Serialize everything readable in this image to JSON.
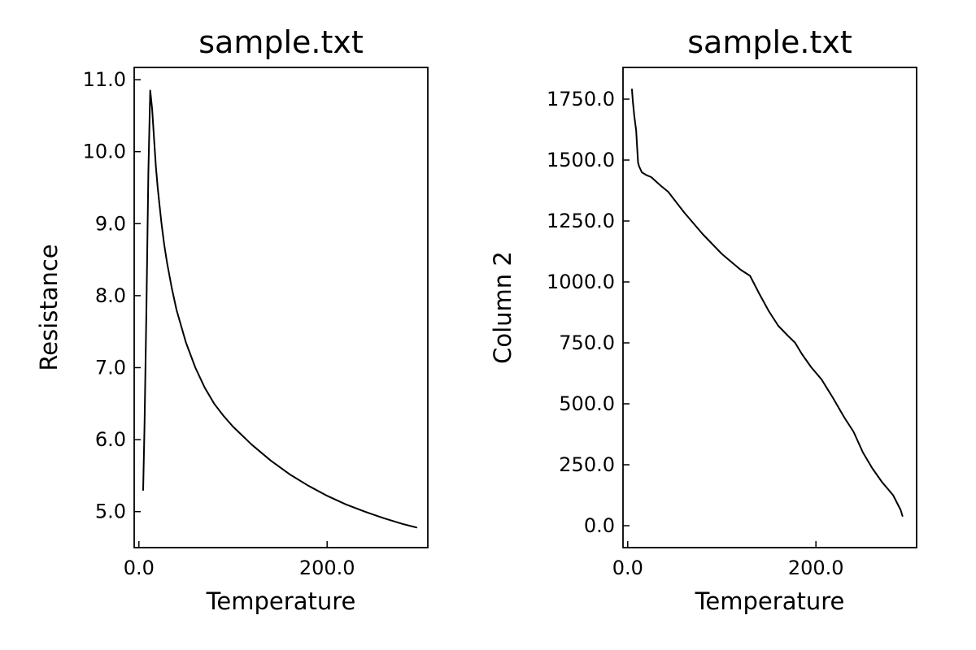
{
  "chart_data": [
    {
      "type": "line",
      "title": "sample.txt",
      "xlabel": "Temperature",
      "ylabel": "Resistance",
      "xlim": [
        -5,
        307
      ],
      "ylim": [
        4.5,
        11.17
      ],
      "xticks": [
        0,
        200
      ],
      "xtick_labels": [
        "0.0",
        "200.0"
      ],
      "yticks": [
        5,
        6,
        7,
        8,
        9,
        10,
        11
      ],
      "ytick_labels": [
        "5.0",
        "6.0",
        "7.0",
        "8.0",
        "9.0",
        "10.0",
        "11.0"
      ],
      "grid": false,
      "series": [
        {
          "color": "#000000",
          "x": [
            4.5,
            6,
            8,
            10,
            12,
            14,
            16,
            18,
            20,
            22,
            24,
            27,
            30,
            35,
            40,
            50,
            60,
            70,
            80,
            90,
            100,
            120,
            140,
            160,
            180,
            200,
            220,
            240,
            260,
            280,
            295
          ],
          "y": [
            5.3,
            6.2,
            7.8,
            9.7,
            10.85,
            10.6,
            10.2,
            9.8,
            9.5,
            9.25,
            9.0,
            8.7,
            8.45,
            8.1,
            7.8,
            7.35,
            7.0,
            6.72,
            6.5,
            6.33,
            6.18,
            5.93,
            5.71,
            5.52,
            5.36,
            5.22,
            5.1,
            5.0,
            4.91,
            4.83,
            4.78
          ]
        }
      ]
    },
    {
      "type": "line",
      "title": "sample.txt",
      "xlabel": "Temperature",
      "ylabel": "Column 2",
      "xlim": [
        -5,
        307
      ],
      "ylim": [
        -90,
        1880
      ],
      "xticks": [
        0,
        200
      ],
      "xtick_labels": [
        "0.0",
        "200.0"
      ],
      "yticks": [
        0,
        250,
        500,
        750,
        1000,
        1250,
        1500,
        1750
      ],
      "ytick_labels": [
        "0.0",
        "250.0",
        "500.0",
        "750.0",
        "1000.0",
        "1250.0",
        "1500.0",
        "1750.0"
      ],
      "grid": false,
      "series": [
        {
          "color": "#000000",
          "x": [
            4.5,
            5.5,
            7,
            9,
            10,
            11,
            12,
            15,
            20,
            25,
            35,
            43,
            60,
            80,
            100,
            120,
            130,
            140,
            150,
            160,
            170,
            178,
            185,
            195,
            206,
            218,
            230,
            240,
            250,
            260,
            270,
            282,
            290,
            292
          ],
          "y": [
            1790,
            1740,
            1680,
            1620,
            1550,
            1490,
            1475,
            1450,
            1438,
            1430,
            1395,
            1370,
            1285,
            1195,
            1115,
            1050,
            1025,
            950,
            880,
            820,
            780,
            750,
            705,
            650,
            600,
            525,
            445,
            385,
            300,
            235,
            180,
            125,
            65,
            40
          ]
        }
      ]
    }
  ]
}
